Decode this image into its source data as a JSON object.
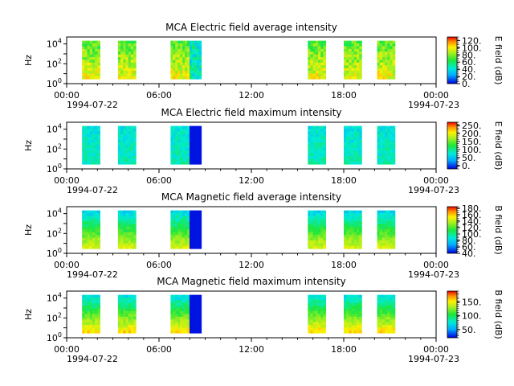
{
  "figure": {
    "x_ticks": [
      "00:00",
      "06:00",
      "12:00",
      "18:00",
      "00:00"
    ],
    "x_start_date": "1994-07-22",
    "x_end_date": "1994-07-23",
    "y_tick_labels": [
      "10^0",
      "10^2",
      "10^4"
    ]
  },
  "chart_data": [
    {
      "type": "heatmap",
      "title": "MCA  Electric field average intensity",
      "ylabel": "Hz",
      "ylim": [
        1,
        50000
      ],
      "yscale": "log",
      "xlim": [
        "1994-07-22T00:00",
        "1994-07-23T00:00"
      ],
      "colorbar_label": "E field (dB)",
      "colorbar_ticks": [
        "0.",
        "20.",
        "40.",
        "60.",
        "80.",
        "100.",
        "120."
      ],
      "clim": [
        0,
        130
      ],
      "data_intervals": [
        [
          "01:00",
          "02:10"
        ],
        [
          "03:20",
          "04:30"
        ],
        [
          "06:45",
          "08:45"
        ],
        [
          "15:40",
          "16:50"
        ],
        [
          "18:00",
          "19:10"
        ],
        [
          "20:10",
          "21:20"
        ]
      ]
    },
    {
      "type": "heatmap",
      "title": "MCA  Electric field maximum intensity",
      "ylabel": "Hz",
      "ylim": [
        1,
        50000
      ],
      "yscale": "log",
      "xlim": [
        "1994-07-22T00:00",
        "1994-07-23T00:00"
      ],
      "colorbar_label": "E field (dB)",
      "colorbar_ticks": [
        "0.",
        "50.",
        "100.",
        "150.",
        "200.",
        "250."
      ],
      "clim": [
        -20,
        270
      ],
      "data_intervals": [
        [
          "01:00",
          "02:10"
        ],
        [
          "03:20",
          "04:30"
        ],
        [
          "06:45",
          "08:45"
        ],
        [
          "15:40",
          "16:50"
        ],
        [
          "18:00",
          "19:10"
        ],
        [
          "20:10",
          "21:20"
        ]
      ]
    },
    {
      "type": "heatmap",
      "title": "MCA  Magnetic field average intensity",
      "ylabel": "Hz",
      "ylim": [
        1,
        50000
      ],
      "yscale": "log",
      "xlim": [
        "1994-07-22T00:00",
        "1994-07-23T00:00"
      ],
      "colorbar_label": "B field (dB)",
      "colorbar_ticks": [
        "40.",
        "60.",
        "80.",
        "100.",
        "120.",
        "140.",
        "160.",
        "180."
      ],
      "clim": [
        40,
        185
      ],
      "data_intervals": [
        [
          "01:00",
          "02:10"
        ],
        [
          "03:20",
          "04:30"
        ],
        [
          "06:45",
          "08:45"
        ],
        [
          "15:40",
          "16:50"
        ],
        [
          "18:00",
          "19:10"
        ],
        [
          "20:10",
          "21:20"
        ]
      ]
    },
    {
      "type": "heatmap",
      "title": "MCA  Magnetic field maximum intensity",
      "ylabel": "Hz",
      "ylim": [
        1,
        50000
      ],
      "yscale": "log",
      "xlim": [
        "1994-07-22T00:00",
        "1994-07-23T00:00"
      ],
      "colorbar_label": "B field (dB)",
      "colorbar_ticks": [
        "50.",
        "100.",
        "150."
      ],
      "clim": [
        20,
        190
      ],
      "data_intervals": [
        [
          "01:00",
          "02:10"
        ],
        [
          "03:20",
          "04:30"
        ],
        [
          "06:45",
          "08:45"
        ],
        [
          "15:40",
          "16:50"
        ],
        [
          "18:00",
          "19:10"
        ],
        [
          "20:10",
          "21:20"
        ]
      ]
    }
  ]
}
